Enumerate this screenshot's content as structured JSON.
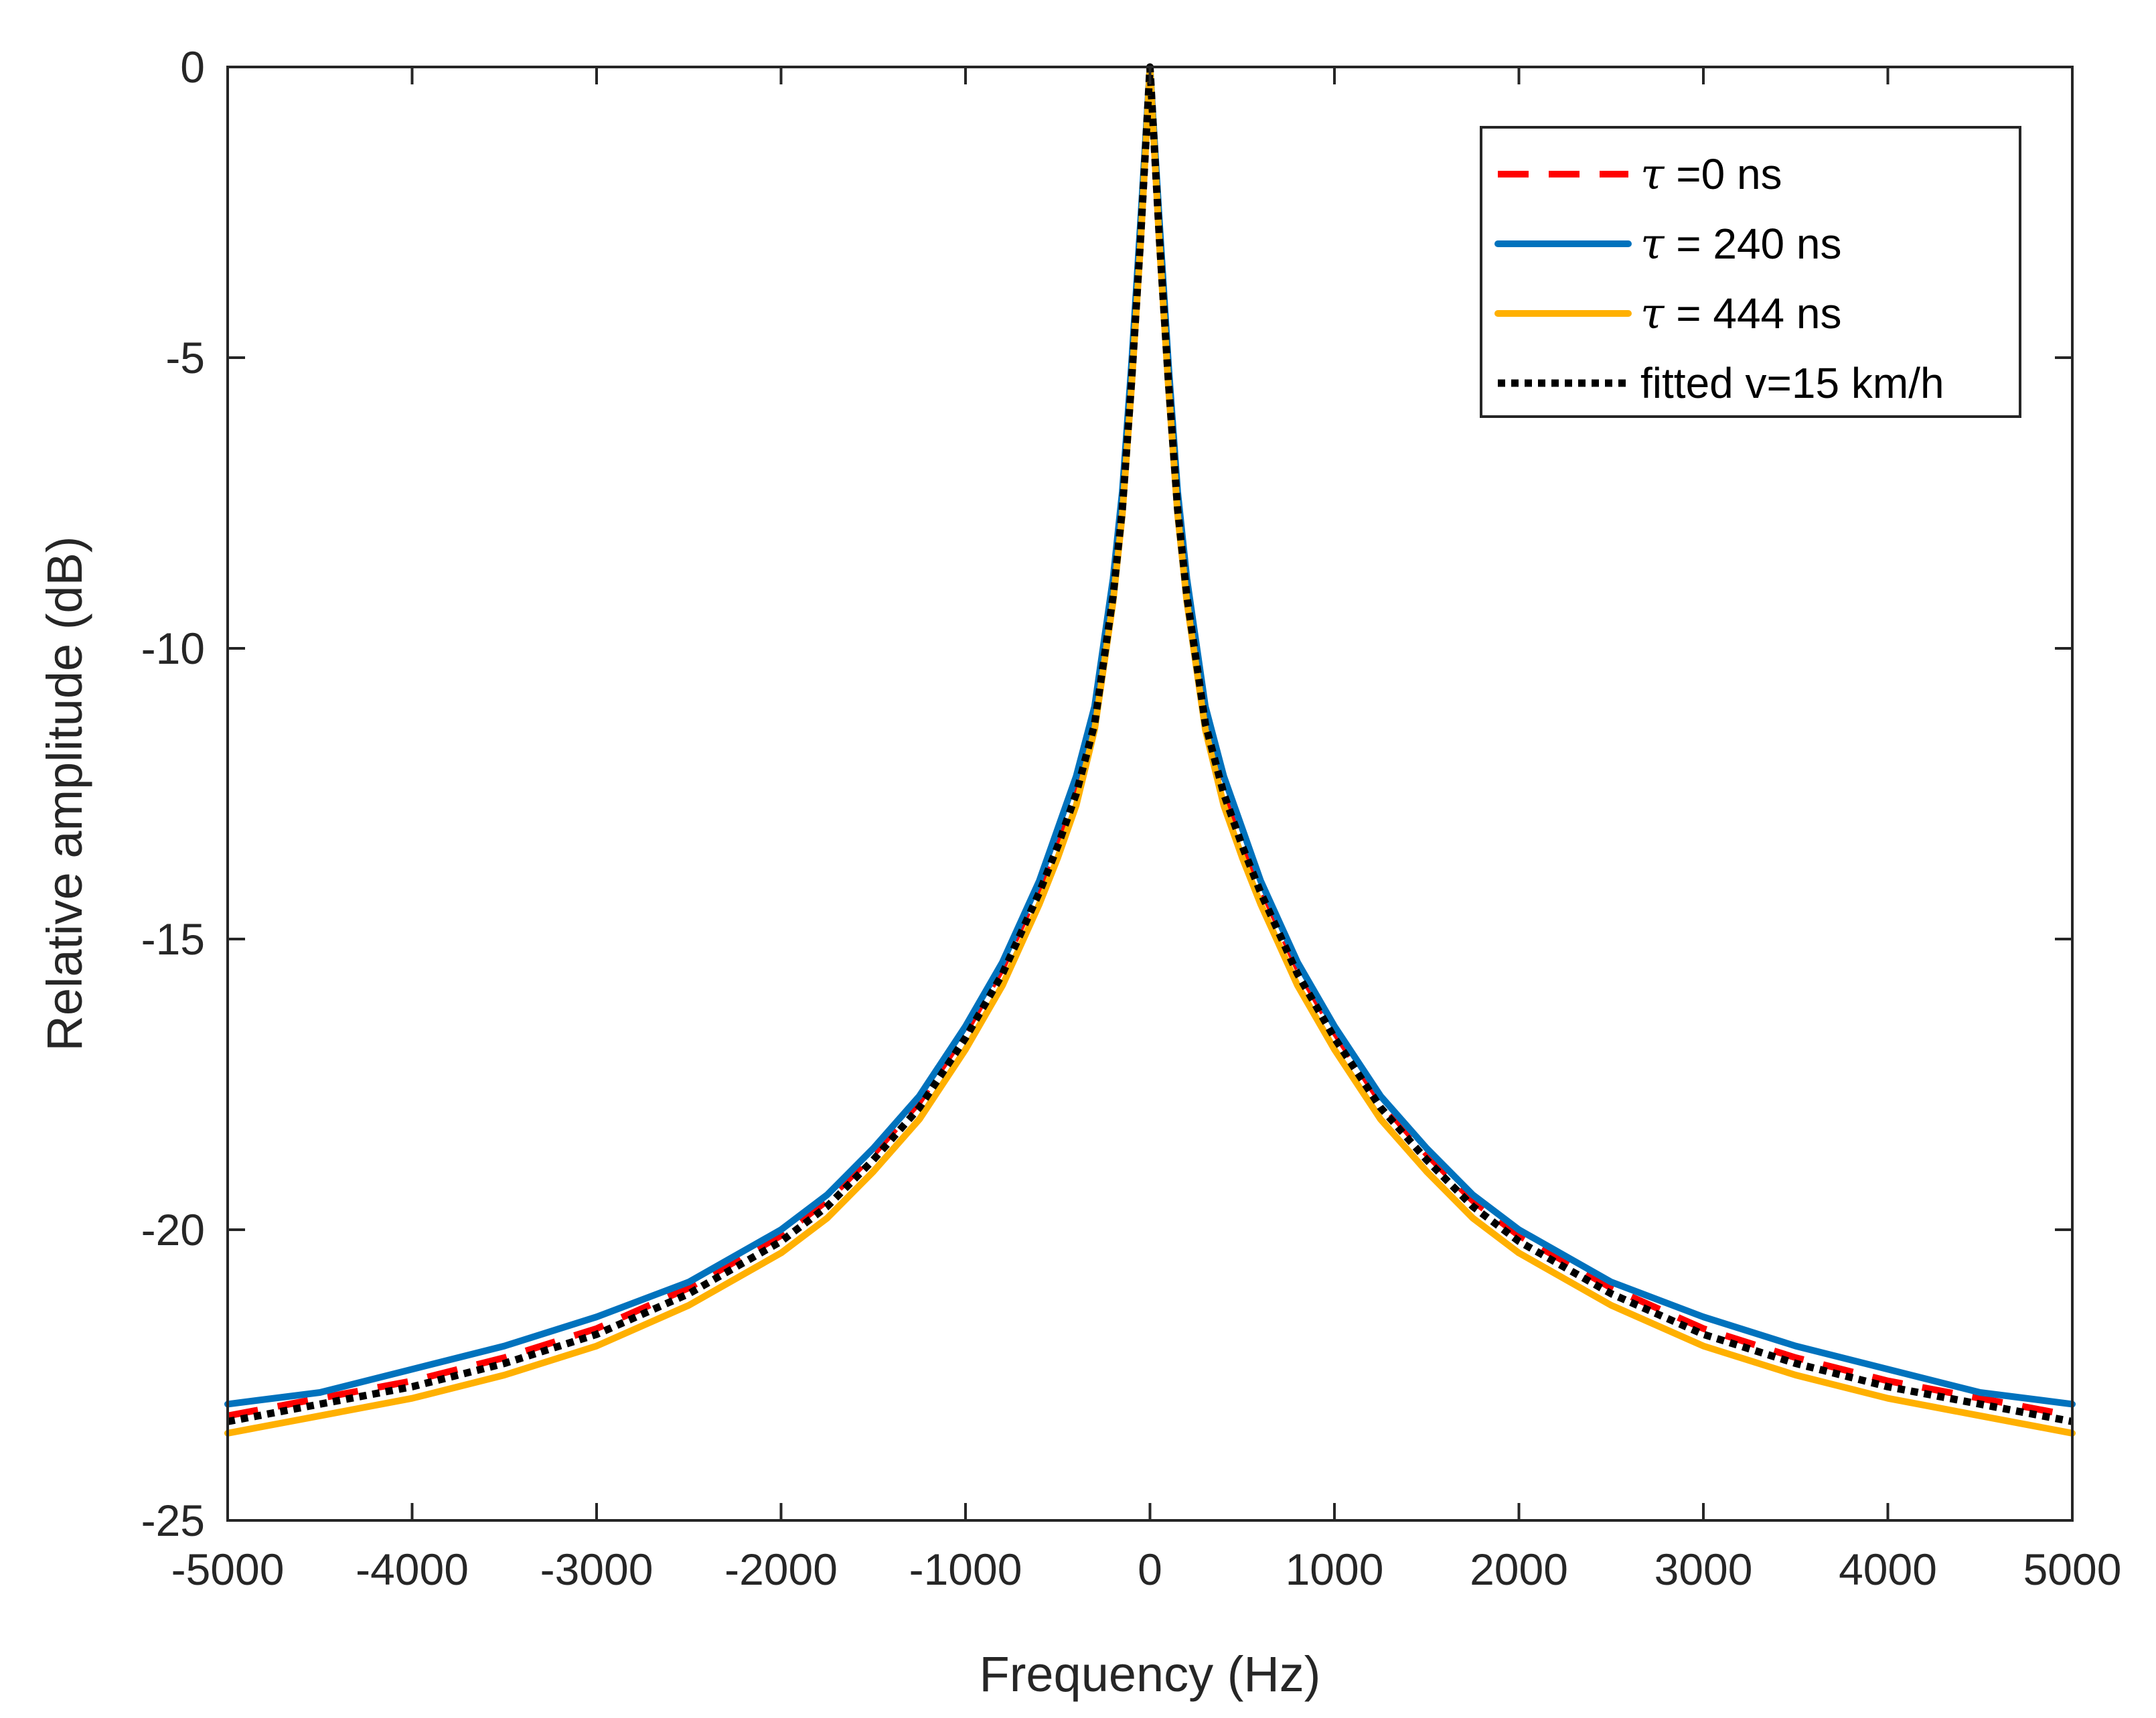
{
  "chart_data": {
    "type": "line",
    "title": "",
    "xlabel": "Frequency (Hz)",
    "ylabel": "Relative amplitude (dB)",
    "xlim": [
      -5000,
      5000
    ],
    "ylim": [
      -25,
      0
    ],
    "xticks": [
      -5000,
      -4000,
      -3000,
      -2000,
      -1000,
      0,
      1000,
      2000,
      3000,
      4000,
      5000
    ],
    "yticks": [
      0,
      -5,
      -10,
      -15,
      -20,
      -25
    ],
    "xtick_labels": [
      "-5000",
      "-4000",
      "-3000",
      "-2000",
      "-1000",
      "0",
      "1000",
      "2000",
      "3000",
      "4000",
      "5000"
    ],
    "ytick_labels": [
      "0",
      "-5",
      "-10",
      "-15",
      "-20",
      "-25"
    ],
    "grid": false,
    "legend_position": "top-right",
    "frequency_hz": [
      0,
      50,
      100,
      150,
      200,
      300,
      400,
      500,
      600,
      800,
      1000,
      1250,
      1500,
      1750,
      2000,
      2500,
      3000,
      3500,
      4000,
      4500,
      5000
    ],
    "series": [
      {
        "name": "τ =0 ns",
        "tau_symbol": "τ",
        "label_rest": " =0 ns",
        "color": "#ff0000",
        "style": "dashed",
        "values": [
          0,
          -2.8,
          -5.3,
          -7.5,
          -9.0,
          -11.2,
          -12.4,
          -13.3,
          -14.1,
          -15.5,
          -16.6,
          -17.8,
          -18.7,
          -19.5,
          -20.1,
          -21.0,
          -21.7,
          -22.2,
          -22.6,
          -22.9,
          -23.2
        ]
      },
      {
        "name": "τ = 240 ns",
        "tau_symbol": "τ",
        "label_rest": " = 240 ns",
        "color": "#0072bd",
        "style": "solid",
        "values": [
          0,
          -2.6,
          -5.1,
          -7.3,
          -8.8,
          -11.0,
          -12.2,
          -13.1,
          -14.0,
          -15.4,
          -16.5,
          -17.7,
          -18.6,
          -19.4,
          -20.0,
          -20.9,
          -21.5,
          -22.0,
          -22.4,
          -22.8,
          -23.0
        ]
      },
      {
        "name": "τ = 444 ns",
        "tau_symbol": "τ",
        "label_rest": " = 444 ns",
        "color": "#ffb000",
        "style": "solid",
        "values": [
          0,
          -3.0,
          -5.5,
          -7.7,
          -9.2,
          -11.4,
          -12.7,
          -13.6,
          -14.4,
          -15.8,
          -16.9,
          -18.1,
          -19.0,
          -19.8,
          -20.4,
          -21.3,
          -22.0,
          -22.5,
          -22.9,
          -23.2,
          -23.5
        ]
      },
      {
        "name": "fitted v=15 km/h",
        "tau_symbol": "",
        "label_rest": "fitted v=15 km/h",
        "color": "#000000",
        "style": "dotted",
        "values": [
          0,
          -2.9,
          -5.4,
          -7.6,
          -9.1,
          -11.3,
          -12.5,
          -13.4,
          -14.2,
          -15.6,
          -16.7,
          -17.9,
          -18.8,
          -19.6,
          -20.2,
          -21.1,
          -21.8,
          -22.3,
          -22.7,
          -23.0,
          -23.3
        ]
      }
    ]
  }
}
